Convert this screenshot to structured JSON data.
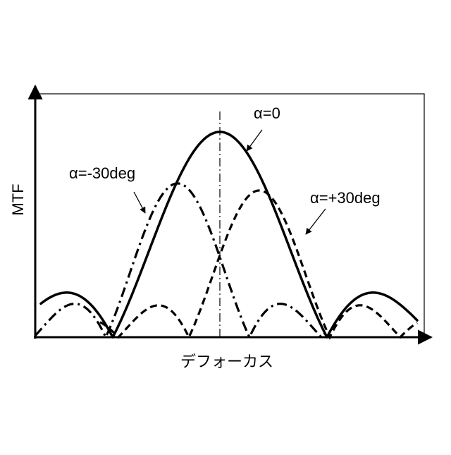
{
  "figure": {
    "y_axis_label": "MTF",
    "x_axis_label": "デフォーカス"
  },
  "curves": [
    {
      "label": "α=0",
      "style": "solid"
    },
    {
      "label": "α=-30deg",
      "style": "dash-dot"
    },
    {
      "label": "α=+30deg",
      "style": "dashed"
    }
  ],
  "center_line": {
    "style": "dash-dot"
  }
}
